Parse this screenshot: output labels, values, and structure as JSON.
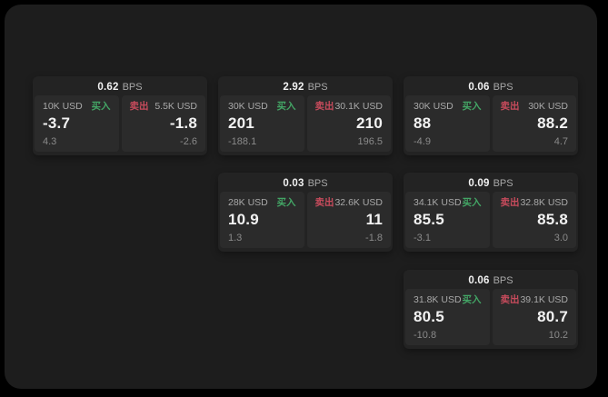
{
  "labels": {
    "bps": "BPS",
    "buy": "买入",
    "sell": "卖出"
  },
  "colors": {
    "page_bg": "#000000",
    "panel_bg": "#1d1d1d",
    "card_bg": "#232323",
    "tile_bg": "#2b2b2b",
    "buy_green": "#43a565",
    "sell_red": "#c74b5c",
    "text_primary": "#f2f2f2",
    "text_secondary": "#a9a9a9",
    "text_dim": "#8a8a8a"
  },
  "cards": [
    {
      "bps": "0.62",
      "buy": {
        "amount": "10K USD",
        "price": "-3.7",
        "delta": "4.3"
      },
      "sell": {
        "amount": "5.5K USD",
        "price": "-1.8",
        "delta": "-2.6"
      }
    },
    {
      "bps": "2.92",
      "buy": {
        "amount": "30K USD",
        "price": "201",
        "delta": "-188.1"
      },
      "sell": {
        "amount": "30.1K USD",
        "price": "210",
        "delta": "196.5"
      }
    },
    {
      "bps": "0.06",
      "buy": {
        "amount": "30K USD",
        "price": "88",
        "delta": "-4.9"
      },
      "sell": {
        "amount": "30K USD",
        "price": "88.2",
        "delta": "4.7"
      }
    },
    {
      "bps": "0.03",
      "buy": {
        "amount": "28K USD",
        "price": "10.9",
        "delta": "1.3"
      },
      "sell": {
        "amount": "32.6K USD",
        "price": "11",
        "delta": "-1.8"
      }
    },
    {
      "bps": "0.09",
      "buy": {
        "amount": "34.1K USD",
        "price": "85.5",
        "delta": "-3.1"
      },
      "sell": {
        "amount": "32.8K USD",
        "price": "85.8",
        "delta": "3.0"
      }
    },
    {
      "bps": "0.06",
      "buy": {
        "amount": "31.8K USD",
        "price": "80.5",
        "delta": "-10.8"
      },
      "sell": {
        "amount": "39.1K USD",
        "price": "80.7",
        "delta": "10.2"
      }
    }
  ]
}
